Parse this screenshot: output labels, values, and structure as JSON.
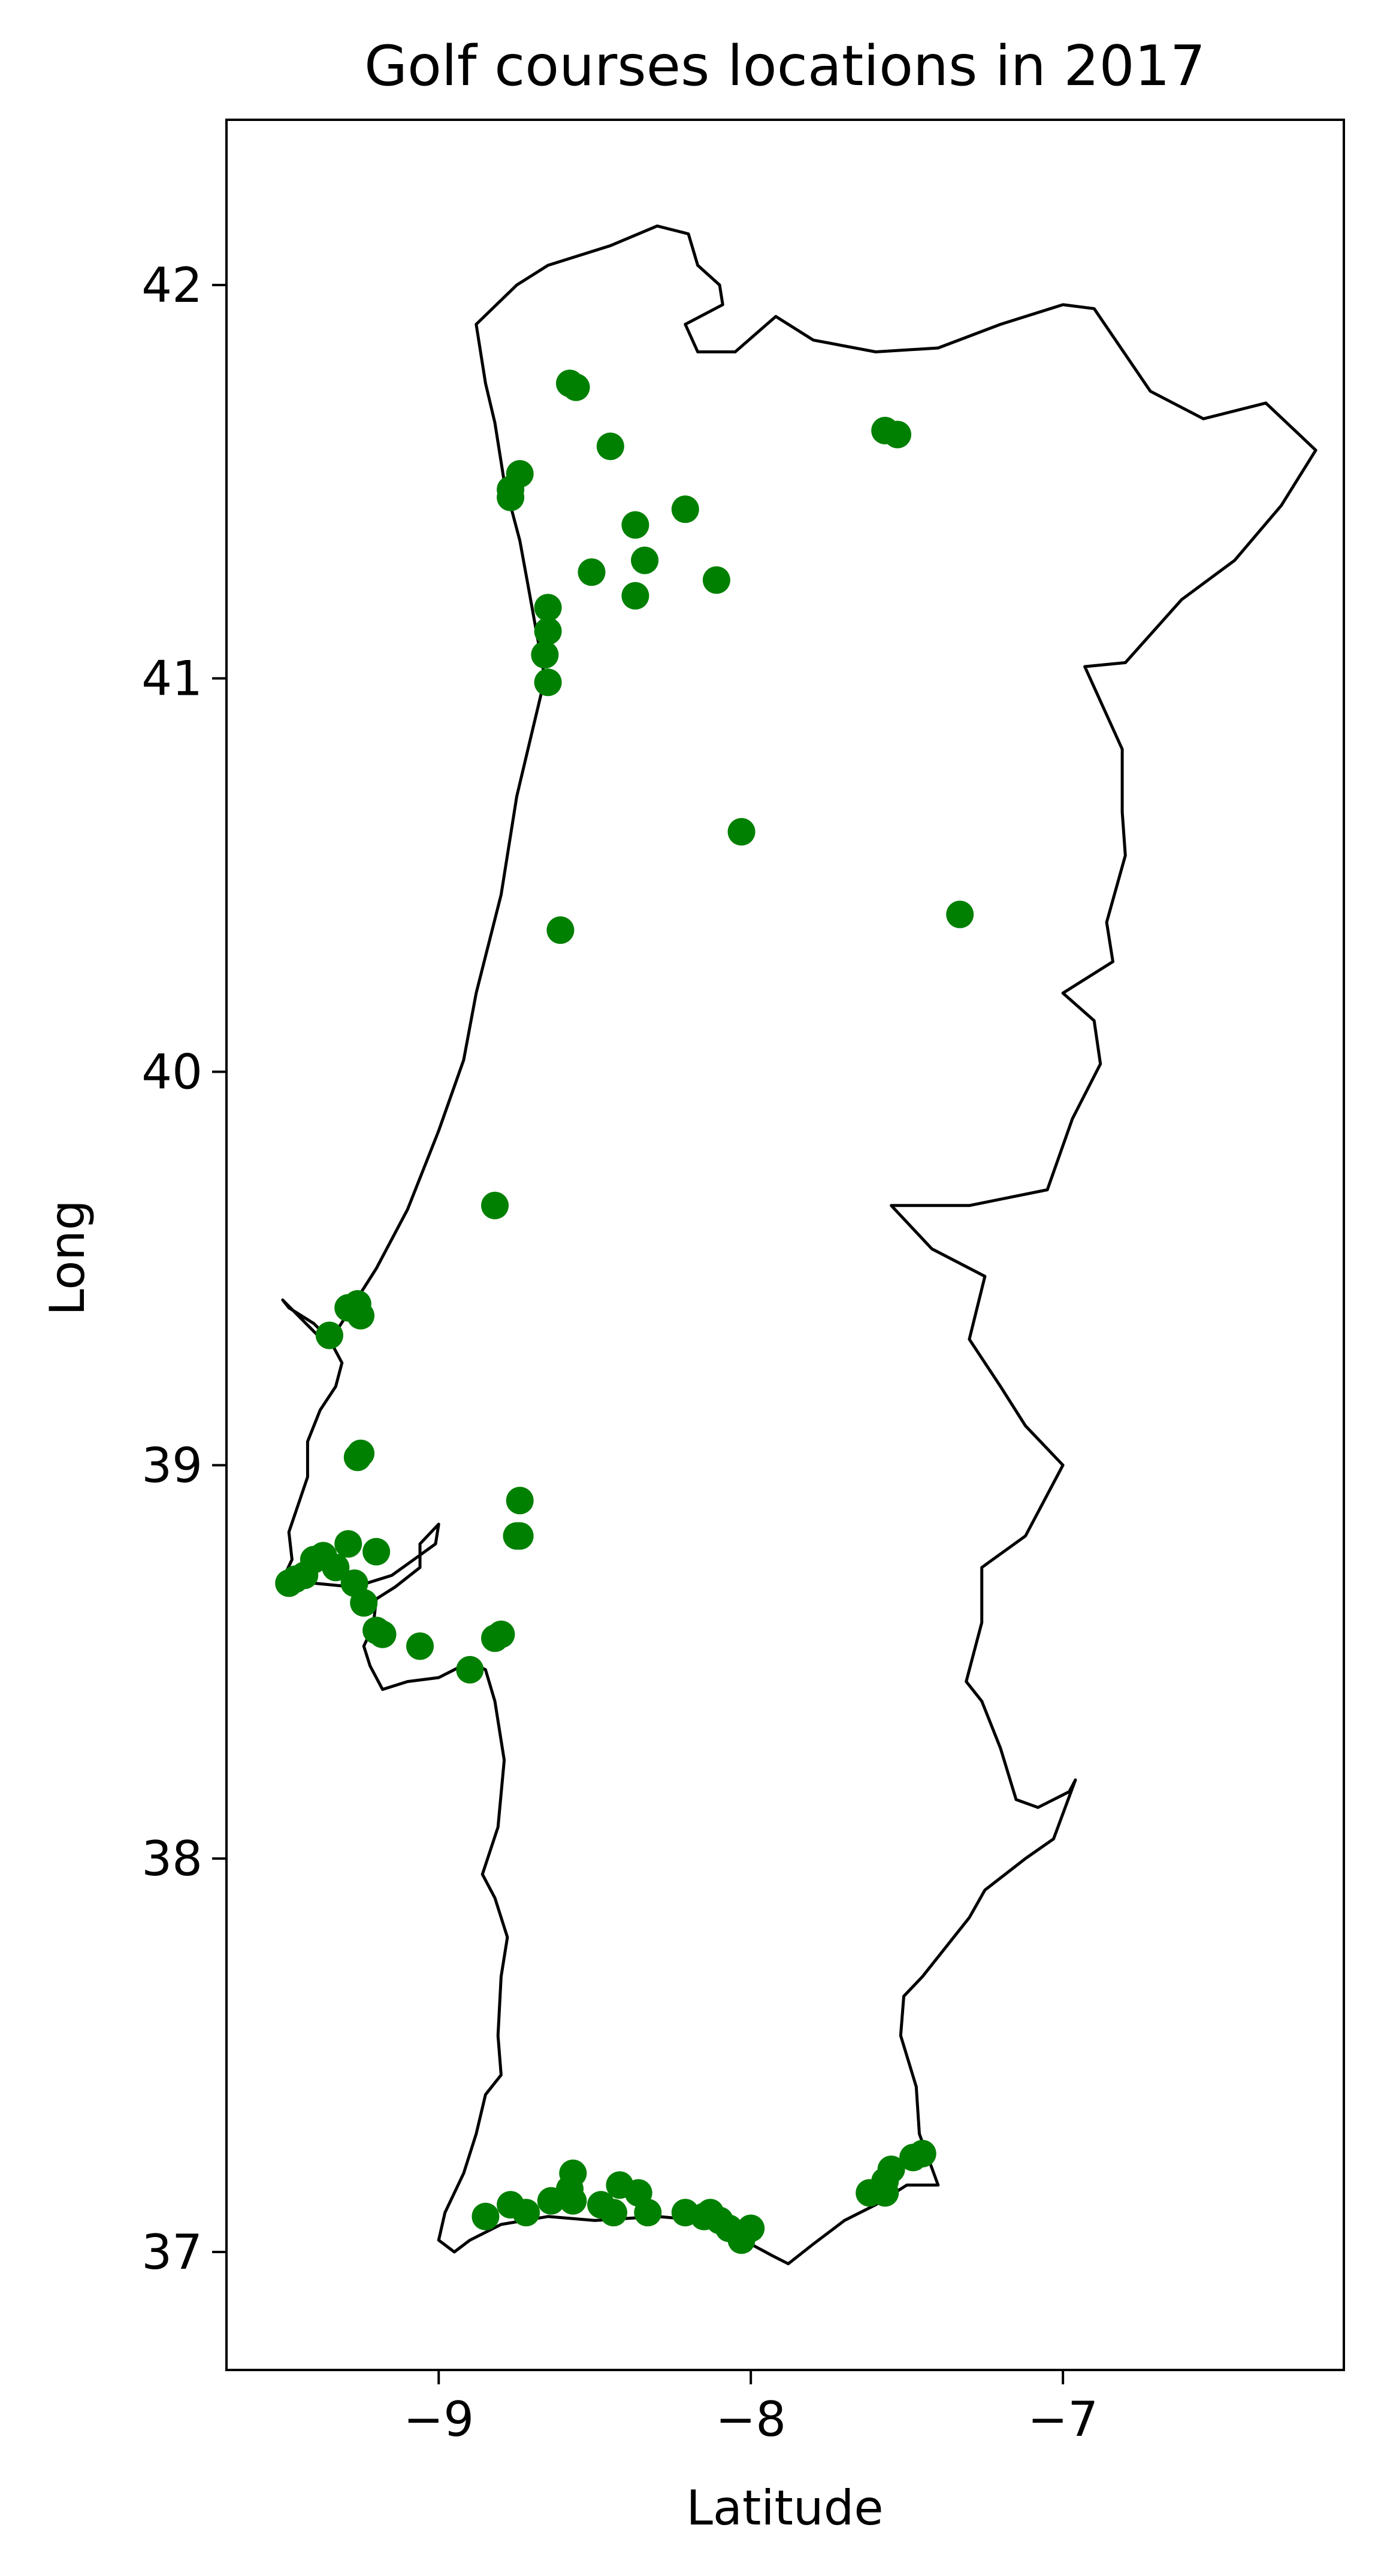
{
  "chart_data": {
    "type": "scatter",
    "title": "Golf courses locations in 2017",
    "xlabel": "Latitude",
    "ylabel": "Long",
    "xlim": [
      -9.68,
      -6.1
    ],
    "ylim": [
      36.7,
      42.42
    ],
    "xticks": [
      -9,
      -8,
      -7
    ],
    "xtick_labels": [
      "−9",
      "−8",
      "−7"
    ],
    "yticks": [
      37,
      38,
      39,
      40,
      41,
      42
    ],
    "ytick_labels": [
      "37",
      "38",
      "39",
      "40",
      "41",
      "42"
    ],
    "grid": false,
    "point_color": "#008000",
    "outline_color": "#000000",
    "points": [
      [
        -8.58,
        41.75
      ],
      [
        -8.56,
        41.74
      ],
      [
        -8.45,
        41.59
      ],
      [
        -7.57,
        41.63
      ],
      [
        -7.53,
        41.62
      ],
      [
        -8.74,
        41.52
      ],
      [
        -8.77,
        41.48
      ],
      [
        -8.77,
        41.46
      ],
      [
        -8.21,
        41.43
      ],
      [
        -8.37,
        41.39
      ],
      [
        -8.34,
        41.3
      ],
      [
        -8.51,
        41.27
      ],
      [
        -8.11,
        41.25
      ],
      [
        -8.37,
        41.21
      ],
      [
        -8.65,
        41.18
      ],
      [
        -8.65,
        41.12
      ],
      [
        -8.66,
        41.06
      ],
      [
        -8.65,
        40.99
      ],
      [
        -8.03,
        40.61
      ],
      [
        -7.33,
        40.4
      ],
      [
        -8.61,
        40.36
      ],
      [
        -8.82,
        39.66
      ],
      [
        -9.29,
        39.4
      ],
      [
        -9.26,
        39.41
      ],
      [
        -9.25,
        39.38
      ],
      [
        -9.35,
        39.33
      ],
      [
        -9.25,
        39.03
      ],
      [
        -9.26,
        39.02
      ],
      [
        -8.74,
        38.91
      ],
      [
        -8.75,
        38.82
      ],
      [
        -8.74,
        38.82
      ],
      [
        -9.29,
        38.8
      ],
      [
        -9.2,
        38.78
      ],
      [
        -9.37,
        38.77
      ],
      [
        -9.4,
        38.76
      ],
      [
        -9.33,
        38.74
      ],
      [
        -9.43,
        38.72
      ],
      [
        -9.46,
        38.71
      ],
      [
        -9.48,
        38.7
      ],
      [
        -9.27,
        38.7
      ],
      [
        -9.24,
        38.65
      ],
      [
        -9.2,
        38.58
      ],
      [
        -9.18,
        38.57
      ],
      [
        -8.8,
        38.57
      ],
      [
        -8.82,
        38.56
      ],
      [
        -9.06,
        38.54
      ],
      [
        -8.9,
        38.48
      ],
      [
        -7.45,
        37.25
      ],
      [
        -7.48,
        37.24
      ],
      [
        -7.55,
        37.21
      ],
      [
        -7.57,
        37.18
      ],
      [
        -7.62,
        37.15
      ],
      [
        -7.57,
        37.15
      ],
      [
        -8.57,
        37.2
      ],
      [
        -8.58,
        37.16
      ],
      [
        -8.42,
        37.17
      ],
      [
        -8.36,
        37.15
      ],
      [
        -8.57,
        37.13
      ],
      [
        -8.64,
        37.13
      ],
      [
        -8.77,
        37.12
      ],
      [
        -8.48,
        37.12
      ],
      [
        -8.44,
        37.1
      ],
      [
        -8.33,
        37.1
      ],
      [
        -8.72,
        37.1
      ],
      [
        -8.85,
        37.09
      ],
      [
        -8.21,
        37.1
      ],
      [
        -8.13,
        37.1
      ],
      [
        -8.15,
        37.09
      ],
      [
        -8.1,
        37.08
      ],
      [
        -8.07,
        37.06
      ],
      [
        -8.0,
        37.06
      ],
      [
        -8.03,
        37.03
      ]
    ],
    "outline": [
      [
        -9.5,
        39.42
      ],
      [
        -9.48,
        39.4
      ],
      [
        -9.4,
        39.36
      ],
      [
        -9.35,
        39.32
      ],
      [
        -9.33,
        39.29
      ],
      [
        -9.31,
        39.26
      ],
      [
        -9.33,
        39.2
      ],
      [
        -9.38,
        39.14
      ],
      [
        -9.42,
        39.06
      ],
      [
        -9.42,
        38.97
      ],
      [
        -9.45,
        38.9
      ],
      [
        -9.48,
        38.83
      ],
      [
        -9.47,
        38.76
      ],
      [
        -9.5,
        38.71
      ],
      [
        -9.4,
        38.7
      ],
      [
        -9.27,
        38.69
      ],
      [
        -9.15,
        38.72
      ],
      [
        -9.08,
        38.76
      ],
      [
        -9.01,
        38.8
      ],
      [
        -9.0,
        38.85
      ],
      [
        -9.06,
        38.8
      ],
      [
        -9.06,
        38.74
      ],
      [
        -9.14,
        38.69
      ],
      [
        -9.2,
        38.66
      ],
      [
        -9.21,
        38.59
      ],
      [
        -9.24,
        38.54
      ],
      [
        -9.22,
        38.49
      ],
      [
        -9.18,
        38.43
      ],
      [
        -9.1,
        38.45
      ],
      [
        -9.0,
        38.46
      ],
      [
        -8.9,
        38.5
      ],
      [
        -8.85,
        38.48
      ],
      [
        -8.82,
        38.4
      ],
      [
        -8.79,
        38.25
      ],
      [
        -8.81,
        38.08
      ],
      [
        -8.86,
        37.96
      ],
      [
        -8.82,
        37.9
      ],
      [
        -8.78,
        37.8
      ],
      [
        -8.8,
        37.7
      ],
      [
        -8.81,
        37.55
      ],
      [
        -8.8,
        37.45
      ],
      [
        -8.85,
        37.4
      ],
      [
        -8.88,
        37.3
      ],
      [
        -8.92,
        37.2
      ],
      [
        -8.98,
        37.1
      ],
      [
        -9.0,
        37.03
      ],
      [
        -8.95,
        37.0
      ],
      [
        -8.9,
        37.03
      ],
      [
        -8.8,
        37.07
      ],
      [
        -8.65,
        37.09
      ],
      [
        -8.5,
        37.08
      ],
      [
        -8.3,
        37.09
      ],
      [
        -8.15,
        37.08
      ],
      [
        -8.07,
        37.03
      ],
      [
        -8.0,
        37.02
      ],
      [
        -7.93,
        36.99
      ],
      [
        -7.88,
        36.97
      ],
      [
        -7.8,
        37.02
      ],
      [
        -7.7,
        37.08
      ],
      [
        -7.6,
        37.12
      ],
      [
        -7.5,
        37.17
      ],
      [
        -7.4,
        37.17
      ],
      [
        -7.46,
        37.3
      ],
      [
        -7.47,
        37.42
      ],
      [
        -7.52,
        37.55
      ],
      [
        -7.51,
        37.65
      ],
      [
        -7.45,
        37.7
      ],
      [
        -7.3,
        37.85
      ],
      [
        -7.25,
        37.92
      ],
      [
        -7.12,
        38.0
      ],
      [
        -7.03,
        38.05
      ],
      [
        -6.96,
        38.2
      ],
      [
        -6.98,
        38.17
      ],
      [
        -7.08,
        38.13
      ],
      [
        -7.15,
        38.15
      ],
      [
        -7.2,
        38.28
      ],
      [
        -7.26,
        38.4
      ],
      [
        -7.31,
        38.45
      ],
      [
        -7.26,
        38.6
      ],
      [
        -7.26,
        38.74
      ],
      [
        -7.12,
        38.82
      ],
      [
        -7.0,
        39.0
      ],
      [
        -7.12,
        39.1
      ],
      [
        -7.2,
        39.2
      ],
      [
        -7.3,
        39.32
      ],
      [
        -7.25,
        39.48
      ],
      [
        -7.42,
        39.55
      ],
      [
        -7.55,
        39.66
      ],
      [
        -7.3,
        39.66
      ],
      [
        -7.05,
        39.7
      ],
      [
        -6.97,
        39.88
      ],
      [
        -6.88,
        40.02
      ],
      [
        -6.9,
        40.13
      ],
      [
        -7.0,
        40.2
      ],
      [
        -6.84,
        40.28
      ],
      [
        -6.86,
        40.38
      ],
      [
        -6.8,
        40.55
      ],
      [
        -6.81,
        40.66
      ],
      [
        -6.81,
        40.82
      ],
      [
        -6.93,
        41.03
      ],
      [
        -6.8,
        41.04
      ],
      [
        -6.62,
        41.2
      ],
      [
        -6.45,
        41.3
      ],
      [
        -6.3,
        41.44
      ],
      [
        -6.19,
        41.58
      ],
      [
        -6.35,
        41.7
      ],
      [
        -6.55,
        41.66
      ],
      [
        -6.72,
        41.73
      ],
      [
        -6.9,
        41.94
      ],
      [
        -7.0,
        41.95
      ],
      [
        -7.2,
        41.9
      ],
      [
        -7.4,
        41.84
      ],
      [
        -7.6,
        41.83
      ],
      [
        -7.8,
        41.86
      ],
      [
        -7.92,
        41.92
      ],
      [
        -8.05,
        41.83
      ],
      [
        -8.17,
        41.83
      ],
      [
        -8.21,
        41.9
      ],
      [
        -8.09,
        41.95
      ],
      [
        -8.1,
        42.0
      ],
      [
        -8.17,
        42.05
      ],
      [
        -8.2,
        42.13
      ],
      [
        -8.3,
        42.15
      ],
      [
        -8.45,
        42.1
      ],
      [
        -8.65,
        42.05
      ],
      [
        -8.75,
        42.0
      ],
      [
        -8.88,
        41.9
      ],
      [
        -8.87,
        41.85
      ],
      [
        -8.85,
        41.75
      ],
      [
        -8.82,
        41.65
      ],
      [
        -8.79,
        41.5
      ],
      [
        -8.74,
        41.35
      ],
      [
        -8.71,
        41.22
      ],
      [
        -8.66,
        41.0
      ],
      [
        -8.69,
        40.9
      ],
      [
        -8.75,
        40.7
      ],
      [
        -8.8,
        40.45
      ],
      [
        -8.88,
        40.2
      ],
      [
        -8.92,
        40.03
      ],
      [
        -9.0,
        39.85
      ],
      [
        -9.1,
        39.65
      ],
      [
        -9.2,
        39.5
      ],
      [
        -9.32,
        39.35
      ],
      [
        -9.35,
        39.3
      ]
    ]
  }
}
